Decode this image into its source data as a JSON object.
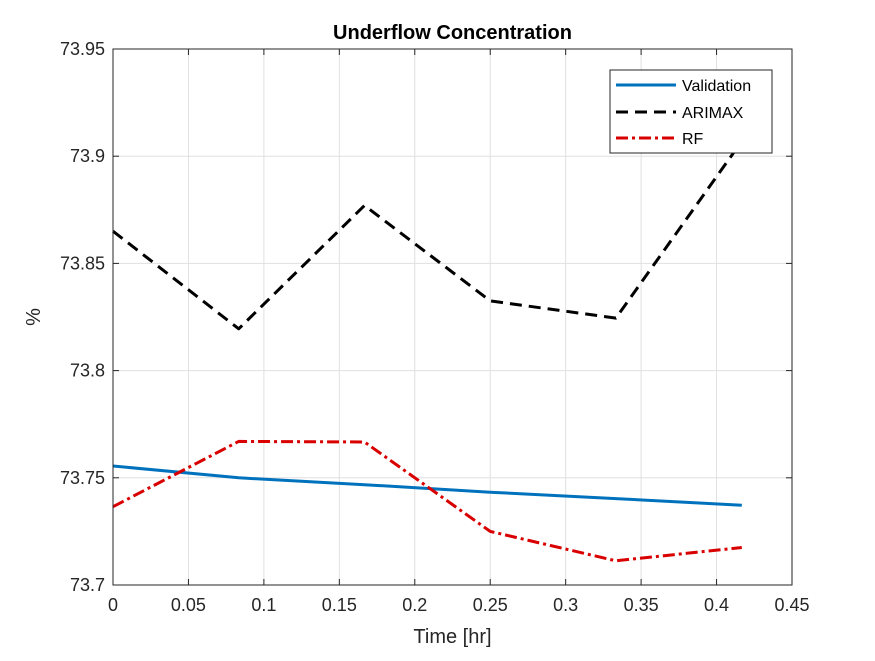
{
  "chart_data": {
    "type": "line",
    "title": "Underflow Concentration",
    "xlabel": "Time [hr]",
    "ylabel": "%",
    "xlim": [
      0,
      0.45
    ],
    "ylim": [
      73.7,
      73.95
    ],
    "xticks": [
      0,
      0.05,
      0.1,
      0.15,
      0.2,
      0.25,
      0.3,
      0.35,
      0.4,
      0.45
    ],
    "xtick_labels": [
      "0",
      "0.05",
      "0.1",
      "0.15",
      "0.2",
      "0.25",
      "0.3",
      "0.35",
      "0.4",
      "0.45"
    ],
    "yticks": [
      73.7,
      73.75,
      73.8,
      73.85,
      73.9,
      73.95
    ],
    "ytick_labels": [
      "73.7",
      "73.75",
      "73.8",
      "73.85",
      "73.9",
      "73.95"
    ],
    "grid": true,
    "legend_position": "top-right",
    "series": [
      {
        "name": "Validation",
        "color": "#0072BD",
        "style": "solid",
        "x": [
          0,
          0.0833,
          0.1667,
          0.25,
          0.3333,
          0.4167
        ],
        "y": [
          73.7555,
          73.75,
          73.7468,
          73.7433,
          73.7403,
          73.7372
        ]
      },
      {
        "name": "ARIMAX",
        "color": "#000000",
        "style": "dashed",
        "x": [
          0,
          0.0833,
          0.1667,
          0.25,
          0.3333,
          0.4167
        ],
        "y": [
          73.865,
          73.8195,
          73.877,
          73.8325,
          73.8245,
          73.907
        ]
      },
      {
        "name": "RF",
        "color": "#D90000",
        "style": "dashdot",
        "x": [
          0,
          0.0833,
          0.1667,
          0.25,
          0.3333,
          0.4167
        ],
        "y": [
          73.7365,
          73.767,
          73.7667,
          73.725,
          73.7113,
          73.7175
        ]
      }
    ]
  }
}
